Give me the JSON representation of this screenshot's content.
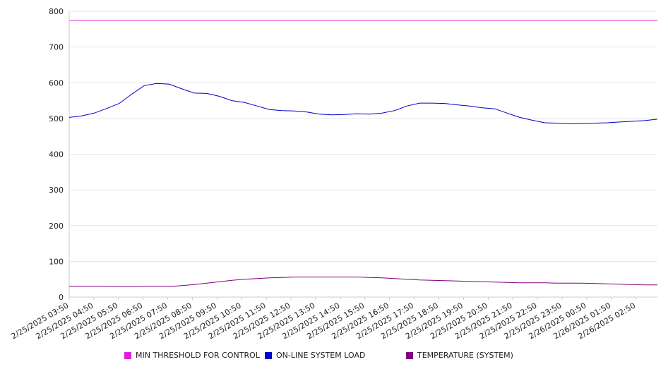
{
  "chart_data": {
    "type": "line",
    "title": "",
    "xlabel": "",
    "ylabel": "",
    "ylim": [
      0,
      800
    ],
    "yticks": [
      0,
      100,
      200,
      300,
      400,
      500,
      600,
      700,
      800
    ],
    "grid": true,
    "legend_position": "bottom",
    "x_tick_labels": [
      "2/25/2025 03:50",
      "2/25/2025 04:50",
      "2/25/2025 05:50",
      "2/25/2025 06:50",
      "2/25/2025 07:50",
      "2/25/2025 08:50",
      "2/25/2025 09:50",
      "2/25/2025 10:50",
      "2/25/2025 11:50",
      "2/25/2025 12:50",
      "2/25/2025 13:50",
      "2/25/2025 14:50",
      "2/25/2025 15:50",
      "2/25/2025 16:50",
      "2/25/2025 17:50",
      "2/25/2025 18:50",
      "2/25/2025 19:50",
      "2/25/2025 20:50",
      "2/25/2025 21:50",
      "2/25/2025 22:50",
      "2/25/2025 23:50",
      "2/26/2025 00:50",
      "2/26/2025 01:50",
      "2/26/2025 02:50"
    ],
    "x": [
      "03:50",
      "04:20",
      "04:50",
      "05:20",
      "05:50",
      "06:20",
      "06:50",
      "07:20",
      "07:50",
      "08:20",
      "08:50",
      "09:20",
      "09:50",
      "10:20",
      "10:50",
      "11:20",
      "11:50",
      "12:20",
      "12:50",
      "13:20",
      "13:50",
      "14:20",
      "14:50",
      "15:20",
      "15:50",
      "16:20",
      "16:50",
      "17:20",
      "17:50",
      "18:20",
      "18:50",
      "19:20",
      "19:50",
      "20:20",
      "20:50",
      "21:20",
      "21:50",
      "22:20",
      "22:50",
      "23:20",
      "23:50",
      "00:20",
      "00:50",
      "01:20",
      "01:50",
      "02:20",
      "02:50",
      "03:20"
    ],
    "series": [
      {
        "name": "MIN THRESHOLD FOR CONTROL",
        "color": "#dd22dd",
        "values": [
          775,
          775,
          775,
          775,
          775,
          775,
          775,
          775,
          775,
          775,
          775,
          775,
          775,
          775,
          775,
          775,
          775,
          775,
          775,
          775,
          775,
          775,
          775,
          775,
          775,
          775,
          775,
          775,
          775,
          775,
          775,
          775,
          775,
          775,
          775,
          775,
          775,
          775,
          775,
          775,
          775,
          775,
          775,
          775,
          775,
          775,
          775,
          775
        ]
      },
      {
        "name": "ON-LINE SYSTEM LOAD",
        "color": "#0000cc",
        "values": [
          503,
          507,
          515,
          528,
          542,
          568,
          592,
          598,
          596,
          583,
          571,
          570,
          562,
          550,
          545,
          535,
          525,
          522,
          521,
          518,
          512,
          510,
          511,
          513,
          512,
          515,
          522,
          535,
          543,
          543,
          542,
          538,
          535,
          530,
          527,
          515,
          503,
          495,
          488,
          487,
          485,
          486,
          487,
          488,
          490,
          492,
          494,
          498
        ]
      },
      {
        "name": "TEMPERATURE (SYSTEM)",
        "color": "#800080",
        "values": [
          30,
          30,
          30,
          30,
          29,
          29,
          30,
          30,
          30,
          32,
          35,
          39,
          43,
          47,
          50,
          52,
          54,
          55,
          56,
          56,
          56,
          56,
          56,
          56,
          55,
          54,
          52,
          50,
          48,
          47,
          46,
          45,
          44,
          43,
          42,
          41,
          40,
          40,
          40,
          39,
          39,
          39,
          38,
          37,
          36,
          35,
          34,
          34
        ]
      }
    ]
  }
}
